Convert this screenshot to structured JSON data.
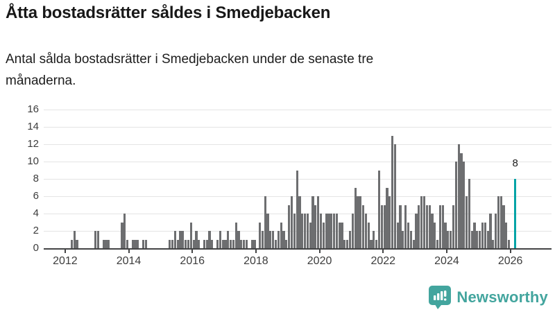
{
  "header": {
    "title": "Åtta bostadsrätter såldes i Smedjebacken",
    "subtitle": "Antal sålda bostadsrätter i Smedjebacken under de senaste tre månaderna."
  },
  "chart_data": {
    "type": "bar",
    "title": "Åtta bostadsrätter såldes i Smedjebacken",
    "subtitle": "Antal sålda bostadsrätter i Smedjebacken under de senaste tre månaderna.",
    "ylim": [
      0,
      16
    ],
    "yticks": [
      0,
      2,
      4,
      6,
      8,
      10,
      12,
      14,
      16
    ],
    "xtick_labels": [
      "2012",
      "2014",
      "2016",
      "2018",
      "2020",
      "2022",
      "2024",
      "2026"
    ],
    "grid": true,
    "bar_color": "#6d6e70",
    "highlight_color": "#00a3a6",
    "axis_color": "#434445",
    "monthly_values": {
      "2012": [
        0,
        0,
        1,
        2,
        1,
        0,
        0,
        0,
        0,
        0,
        0,
        2
      ],
      "2013": [
        2,
        0,
        1,
        1,
        1,
        0,
        0,
        0,
        0,
        3,
        4,
        1
      ],
      "2014": [
        0,
        1,
        1,
        1,
        0,
        1,
        1,
        0,
        0,
        0,
        0,
        0
      ],
      "2015": [
        0,
        0,
        0,
        1,
        1,
        2,
        1,
        2,
        2,
        1,
        1,
        3
      ],
      "2016": [
        1,
        2,
        1,
        0,
        1,
        1,
        2,
        1,
        0,
        1,
        2,
        1
      ],
      "2017": [
        1,
        2,
        1,
        1,
        3,
        2,
        1,
        1,
        1,
        0,
        1,
        1
      ],
      "2018": [
        0,
        3,
        2,
        6,
        4,
        2,
        2,
        1,
        2,
        3,
        2,
        1
      ],
      "2019": [
        5,
        6,
        4,
        9,
        6,
        4,
        4,
        4,
        3,
        6,
        5,
        6
      ],
      "2020": [
        4,
        3,
        4,
        4,
        4,
        4,
        4,
        3,
        3,
        1,
        1,
        2
      ],
      "2021": [
        4,
        7,
        6,
        6,
        5,
        4,
        3,
        1,
        2,
        1,
        9,
        5
      ],
      "2022": [
        5,
        7,
        6,
        13,
        12,
        3,
        5,
        2,
        5,
        3,
        2,
        1
      ],
      "2023": [
        4,
        5,
        6,
        6,
        5,
        5,
        4,
        3,
        1,
        5,
        5,
        3
      ],
      "2024": [
        2,
        2,
        5,
        10,
        12,
        11,
        10,
        6,
        8,
        2,
        3,
        2
      ],
      "2025": [
        2,
        3,
        3,
        2,
        4,
        1,
        4,
        6,
        6,
        5,
        3,
        1
      ]
    },
    "highlight": {
      "label": "8",
      "value": 8,
      "x_month": "2026-02"
    }
  },
  "footer": {
    "brand": "Newsworthy"
  }
}
